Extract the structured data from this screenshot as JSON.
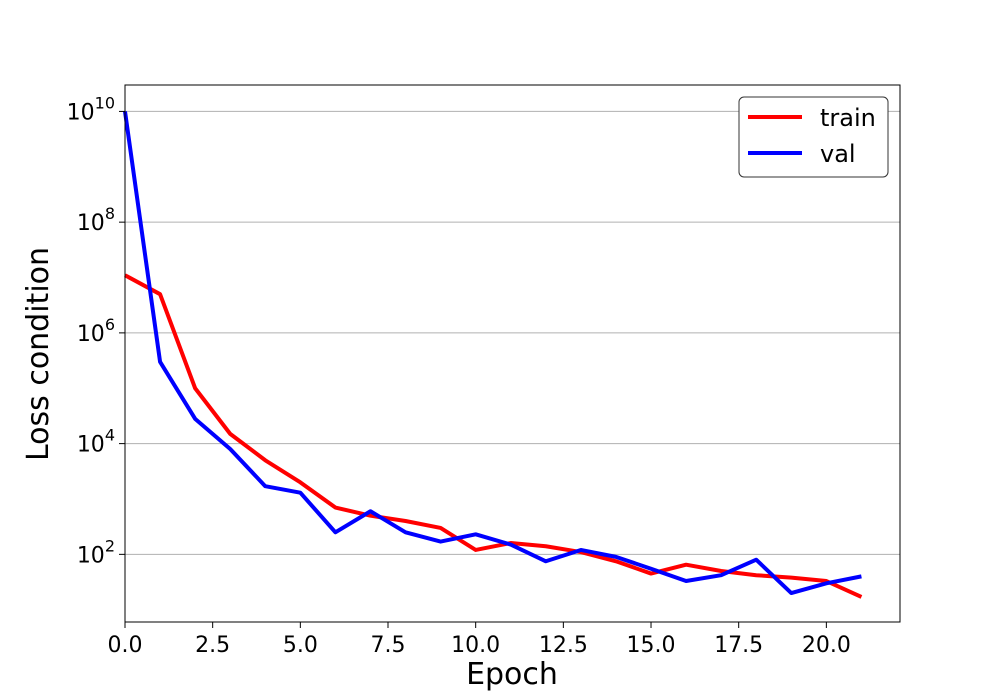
{
  "chart_data": {
    "type": "line",
    "xlabel": "Epoch",
    "ylabel": "Loss condition",
    "yscale": "log",
    "xlim": [
      0,
      22.1
    ],
    "ylim": [
      6,
      30000000000
    ],
    "xticks": [
      {
        "value": 0.0,
        "label": "0.0"
      },
      {
        "value": 2.5,
        "label": "2.5"
      },
      {
        "value": 5.0,
        "label": "5.0"
      },
      {
        "value": 7.5,
        "label": "7.5"
      },
      {
        "value": 10.0,
        "label": "10.0"
      },
      {
        "value": 12.5,
        "label": "12.5"
      },
      {
        "value": 15.0,
        "label": "15.0"
      },
      {
        "value": 17.5,
        "label": "17.5"
      },
      {
        "value": 20.0,
        "label": "20.0"
      }
    ],
    "yticks": [
      {
        "value": 100,
        "base": "10",
        "exp": "2"
      },
      {
        "value": 10000,
        "base": "10",
        "exp": "4"
      },
      {
        "value": 1000000,
        "base": "10",
        "exp": "6"
      },
      {
        "value": 100000000,
        "base": "10",
        "exp": "8"
      },
      {
        "value": 10000000000,
        "base": "10",
        "exp": "10"
      }
    ],
    "grid": "horizontal",
    "legend_position": "top-right",
    "x": [
      0,
      1,
      2,
      3,
      4,
      5,
      6,
      7,
      8,
      9,
      10,
      11,
      12,
      13,
      14,
      15,
      16,
      17,
      18,
      19,
      20,
      21
    ],
    "series": [
      {
        "name": "train",
        "color": "#ff0000",
        "values": [
          11000000,
          5000000,
          100000,
          15000,
          5000,
          2000,
          700,
          500,
          400,
          300,
          120,
          160,
          140,
          110,
          75,
          45,
          65,
          50,
          42,
          38,
          33,
          17
        ]
      },
      {
        "name": "val",
        "color": "#0000ff",
        "values": [
          10000000000,
          300000,
          28000,
          8000,
          1700,
          1300,
          250,
          600,
          250,
          170,
          230,
          150,
          75,
          120,
          90,
          55,
          33,
          42,
          80,
          20,
          30,
          40
        ]
      }
    ]
  }
}
